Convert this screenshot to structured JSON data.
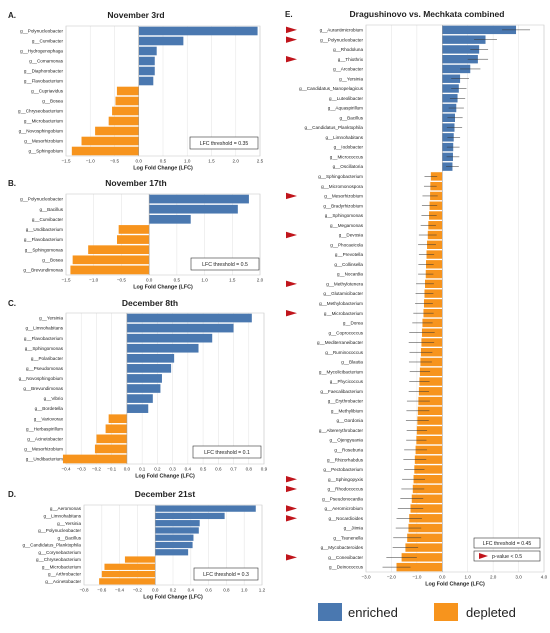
{
  "colors": {
    "enriched": "#4a78b0",
    "depleted": "#f7941d",
    "marker": "#c0151c",
    "grid": "#e6e6e6",
    "axis": "#555555"
  },
  "legend": {
    "enriched_label": "enriched",
    "depleted_label": "depleted"
  },
  "chart_data": [
    {
      "type": "bar",
      "letter": "A.",
      "title": "November 3rd",
      "xlabel": "Log Fold Change (LFC)",
      "xlim": [
        -1.5,
        2.5
      ],
      "xticks": [
        -1.5,
        -1.0,
        -0.5,
        0.0,
        0.5,
        1.0,
        1.5,
        2.0,
        2.5
      ],
      "threshold_text": "LFC threshold = 0.35",
      "categories": [
        "g__Polynucleobacter",
        "g__Curvibacter",
        "g__Hydrogenophaga",
        "g__Comamonas",
        "g__Diaphorobacter",
        "g__Flavobacterium",
        "g__Cupriavidus",
        "g__Bosea",
        "g__Chryseobacterium",
        "g__Microbacterium",
        "g__Novosphingobium",
        "g__Mesorhizobium",
        "g__Sphingobium"
      ],
      "values": [
        2.45,
        0.92,
        0.37,
        0.33,
        0.33,
        0.3,
        -0.45,
        -0.48,
        -0.55,
        -0.62,
        -0.9,
        -1.18,
        -1.38
      ]
    },
    {
      "type": "bar",
      "letter": "B.",
      "title": "November 17th",
      "xlabel": "Log Fold Change (LFC)",
      "xlim": [
        -1.5,
        2.0
      ],
      "xticks": [
        -1.5,
        -1.0,
        -0.5,
        0.0,
        0.5,
        1.0,
        1.5,
        2.0
      ],
      "threshold_text": "LFC threshold = 0.5",
      "categories": [
        "g__Polynucleobacter",
        "g__Bacillus",
        "g__Curvibacter",
        "g__Undibacterium",
        "g__Flavobacterium",
        "g__Sphingomonas",
        "g__Bosea",
        "g__Brevundimonas"
      ],
      "values": [
        1.8,
        1.6,
        0.75,
        -0.55,
        -0.58,
        -1.1,
        -1.38,
        -1.42
      ]
    },
    {
      "type": "bar",
      "letter": "C.",
      "title": "December 8th",
      "xlabel": "Log Fold Change (LFC)",
      "xlim": [
        -0.4,
        0.9
      ],
      "xticks": [
        -0.4,
        -0.3,
        -0.2,
        -0.1,
        0.0,
        0.1,
        0.2,
        0.3,
        0.4,
        0.5,
        0.6,
        0.7,
        0.8,
        0.9
      ],
      "threshold_text": "LFC threshold = 0.1",
      "categories": [
        "g__Yersinia",
        "g__Limnohabitans",
        "g__Flavobacterium",
        "g__Sphingomonas",
        "g__Polaribacter",
        "g__Pseudomonas",
        "g__Novosphingobium",
        "g__Brevundimonas",
        "g__Vibrio",
        "g__Bordetella",
        "g__Variovorax",
        "g__Herbaspirillum",
        "g__Acinetobacter",
        "g__Mesorhizobium",
        "g__Undibacterium"
      ],
      "values": [
        0.82,
        0.7,
        0.56,
        0.47,
        0.31,
        0.29,
        0.23,
        0.22,
        0.17,
        0.14,
        -0.12,
        -0.14,
        -0.2,
        -0.21,
        -0.42
      ]
    },
    {
      "type": "bar",
      "letter": "D.",
      "title": "December 21st",
      "xlabel": "Log Fold Change (LFC)",
      "xlim": [
        -0.8,
        1.2
      ],
      "xticks": [
        -0.8,
        -0.6,
        -0.4,
        -0.2,
        0.0,
        0.2,
        0.4,
        0.6,
        0.8,
        1.0,
        1.2
      ],
      "threshold_text": "LFC threshold = 0.3",
      "categories": [
        "g__Aeromonas",
        "g__Limnohabitans",
        "g__Yersinia",
        "g__Polynucleobacter",
        "g__Bacillus",
        "g__Candidatus_Planktophila",
        "g__Corynebacterium",
        "g__Chryseobacterium",
        "g__Microbacterium",
        "g__Arthrobacter",
        "g__Acinetobacter"
      ],
      "values": [
        1.13,
        0.78,
        0.5,
        0.49,
        0.43,
        0.42,
        0.37,
        -0.34,
        -0.57,
        -0.6,
        -0.63
      ]
    },
    {
      "type": "bar",
      "letter": "E.",
      "title": "Dragushinovo vs. Mechkata combined",
      "xlabel": "Log Fold Change (LFC)",
      "xlim": [
        -3.0,
        4.0
      ],
      "xticks": [
        -3.0,
        -2.0,
        -1.0,
        0.0,
        1.0,
        2.0,
        3.0,
        4.0
      ],
      "threshold_text": "LFC threshold = 0.45",
      "pvalue_text": "p-value < 0.5",
      "categories": [
        "g__Aurantimicrobium",
        "g__Polynucleobacter",
        "g__Rhodoluna",
        "g__Thiothrix",
        "g__Arcobacter",
        "g__Yersinia",
        "g__Candidatus_Nanopelagicus",
        "g__Luteolibacter",
        "g__Aquaspirillum",
        "g__Bacillus",
        "g__Candidatus_Planktophila",
        "g__Limnohabitans",
        "g__Iodobacter",
        "g__Micrococcus",
        "g__Oscillatoria",
        "g__Sphingobacterium",
        "g__Micromonospora",
        "g__Mesorhizobium",
        "g__Bradyrhizobium",
        "g__Sphingomonas",
        "g__Megamonas",
        "g__Devosia",
        "g__Phocaeicola",
        "g__Prevotella",
        "g__Collinsella",
        "g__Nocardia",
        "g__Methylotenera",
        "g__Glutamicibacter",
        "g__Methylobacterium",
        "g__Microbacterium",
        "g__Dorea",
        "g__Coprococcus",
        "g__Mediterraneibacter",
        "g__Ruminococcus",
        "g__Blautia",
        "g__Mycolicibacterium",
        "g__Phycicoccus",
        "g__Faecalibacterium",
        "g__Erythrobacter",
        "g__Methylibium",
        "g__Gordonia",
        "g__Altererythrobacter",
        "g__Ojengyuania",
        "g__Roseburia",
        "g__Rhizorhabdus",
        "g__Pectobacterium",
        "g__Sphingopyxis",
        "g__Rhodococcus",
        "g__Pseudonocardia",
        "g__Aeromicrobium",
        "g__Nocardioides",
        "g__Jiimia",
        "g__Tsunenella",
        "g__Mycobacteroides",
        "g__Conexibacter",
        "g__Deinococcus"
      ],
      "values": [
        2.9,
        1.7,
        1.45,
        1.4,
        1.1,
        0.7,
        0.65,
        0.6,
        0.55,
        0.5,
        0.48,
        0.45,
        0.43,
        0.42,
        0.4,
        -0.45,
        -0.47,
        -0.48,
        -0.5,
        -0.52,
        -0.55,
        -0.57,
        -0.6,
        -0.62,
        -0.64,
        -0.65,
        -0.68,
        -0.7,
        -0.72,
        -0.74,
        -0.78,
        -0.8,
        -0.82,
        -0.84,
        -0.86,
        -0.88,
        -0.9,
        -0.92,
        -0.94,
        -0.96,
        -0.98,
        -1.0,
        -1.02,
        -1.05,
        -1.08,
        -1.1,
        -1.13,
        -1.16,
        -1.2,
        -1.25,
        -1.3,
        -1.33,
        -1.38,
        -1.45,
        -1.6,
        -1.8
      ],
      "errors": [
        0.55,
        0.45,
        0.35,
        0.4,
        0.4,
        0.35,
        0.3,
        0.3,
        0.3,
        0.3,
        0.3,
        0.25,
        0.25,
        0.25,
        0.25,
        0.25,
        0.25,
        0.3,
        0.3,
        0.3,
        0.3,
        0.35,
        0.35,
        0.3,
        0.3,
        0.3,
        0.35,
        0.35,
        0.35,
        0.4,
        0.4,
        0.5,
        0.5,
        0.45,
        0.45,
        0.4,
        0.4,
        0.4,
        0.45,
        0.45,
        0.45,
        0.4,
        0.4,
        0.45,
        0.45,
        0.4,
        0.45,
        0.45,
        0.45,
        0.5,
        0.5,
        0.5,
        0.55,
        0.5,
        0.6,
        0.55
      ],
      "pvalue_flag": [
        true,
        true,
        false,
        true,
        false,
        false,
        false,
        false,
        false,
        false,
        false,
        false,
        false,
        false,
        false,
        false,
        false,
        true,
        false,
        false,
        false,
        true,
        false,
        false,
        false,
        false,
        true,
        false,
        false,
        true,
        false,
        false,
        false,
        false,
        false,
        false,
        false,
        false,
        false,
        false,
        false,
        false,
        false,
        false,
        false,
        false,
        true,
        true,
        false,
        true,
        true,
        false,
        false,
        false,
        true,
        false
      ]
    }
  ]
}
